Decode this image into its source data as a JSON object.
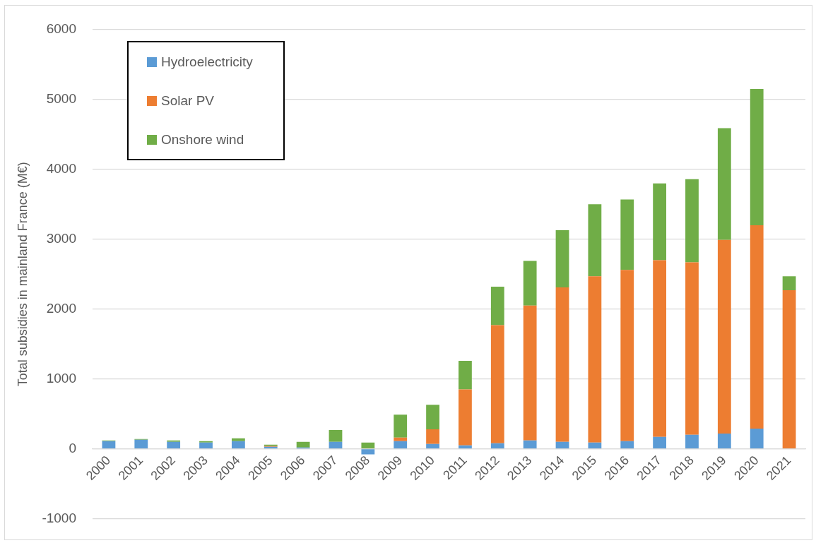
{
  "chart_data": {
    "type": "bar",
    "ylabel": "Total subsidies in mainland France (M€)",
    "categories": [
      "2000",
      "2001",
      "2002",
      "2003",
      "2004",
      "2005",
      "2006",
      "2007",
      "2008",
      "2009",
      "2010",
      "2011",
      "2012",
      "2013",
      "2014",
      "2015",
      "2016",
      "2017",
      "2018",
      "2019",
      "2020",
      "2021"
    ],
    "series": [
      {
        "name": "Hydroelectricity",
        "color": "#5b9bd5",
        "values": [
          110,
          130,
          100,
          90,
          110,
          30,
          20,
          100,
          -80,
          110,
          70,
          50,
          80,
          120,
          100,
          90,
          110,
          170,
          200,
          220,
          290,
          0
        ]
      },
      {
        "name": "Solar PV",
        "color": "#ed7d31",
        "values": [
          0,
          0,
          0,
          0,
          0,
          10,
          0,
          0,
          0,
          50,
          210,
          800,
          1690,
          1930,
          2210,
          2380,
          2450,
          2530,
          2470,
          2770,
          2910,
          2270
        ]
      },
      {
        "name": "Onshore wind",
        "color": "#70ad47",
        "values": [
          10,
          10,
          20,
          20,
          40,
          20,
          80,
          170,
          90,
          330,
          350,
          410,
          550,
          640,
          820,
          1030,
          1010,
          1100,
          1190,
          1600,
          1950,
          200
        ]
      }
    ],
    "stacked": true,
    "ylim": [
      -1000,
      6000
    ],
    "yticks": [
      -1000,
      0,
      1000,
      2000,
      3000,
      4000,
      5000,
      6000
    ],
    "grid": "y",
    "legend": "top left"
  }
}
